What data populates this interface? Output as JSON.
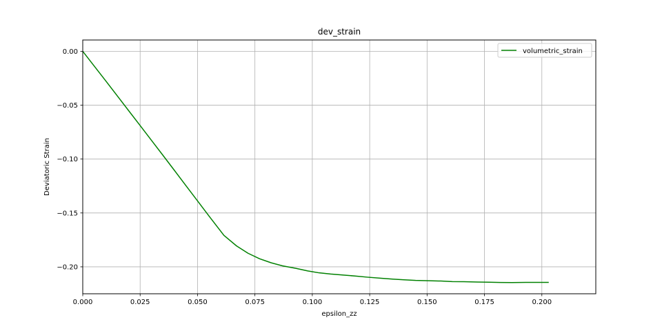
{
  "chart_data": {
    "type": "line",
    "title": "dev_strain",
    "xlabel": "epsilon_zz",
    "ylabel": "Deviatoric Strain",
    "xlim": [
      0.0,
      0.2235
    ],
    "ylim": [
      -0.225,
      0.0105
    ],
    "xticks": [
      0.0,
      0.025,
      0.05,
      0.075,
      0.1,
      0.125,
      0.15,
      0.175,
      0.2
    ],
    "xtick_labels": [
      "0.000",
      "0.025",
      "0.050",
      "0.075",
      "0.100",
      "0.125",
      "0.150",
      "0.175",
      "0.200"
    ],
    "yticks": [
      0.0,
      -0.05,
      -0.1,
      -0.15,
      -0.2
    ],
    "ytick_labels": [
      "0.00",
      "−0.05",
      "−0.10",
      "−0.15",
      "−0.20"
    ],
    "grid": true,
    "legend_position": "top-right",
    "series": [
      {
        "name": "volumetric_strain",
        "color": "#008000",
        "x": [
          0.0,
          0.005,
          0.01,
          0.015,
          0.02,
          0.025,
          0.03,
          0.035,
          0.04,
          0.045,
          0.05,
          0.055,
          0.0615,
          0.067,
          0.072,
          0.077,
          0.082,
          0.087,
          0.093,
          0.098,
          0.103,
          0.108,
          0.114,
          0.119,
          0.124,
          0.13,
          0.135,
          0.14,
          0.145,
          0.151,
          0.156,
          0.161,
          0.166,
          0.172,
          0.177,
          0.182,
          0.187,
          0.193,
          0.198,
          0.203
        ],
        "y": [
          0.0,
          -0.0137,
          -0.0274,
          -0.0412,
          -0.0551,
          -0.0689,
          -0.0828,
          -0.0967,
          -0.1107,
          -0.1248,
          -0.1388,
          -0.1529,
          -0.1708,
          -0.1806,
          -0.1874,
          -0.1925,
          -0.1962,
          -0.1991,
          -0.2015,
          -0.2038,
          -0.2056,
          -0.2067,
          -0.2077,
          -0.2086,
          -0.2096,
          -0.2106,
          -0.2114,
          -0.212,
          -0.2126,
          -0.2129,
          -0.2132,
          -0.2137,
          -0.2138,
          -0.2141,
          -0.2143,
          -0.2145,
          -0.2146,
          -0.2144,
          -0.2144,
          -0.2144
        ]
      }
    ]
  }
}
